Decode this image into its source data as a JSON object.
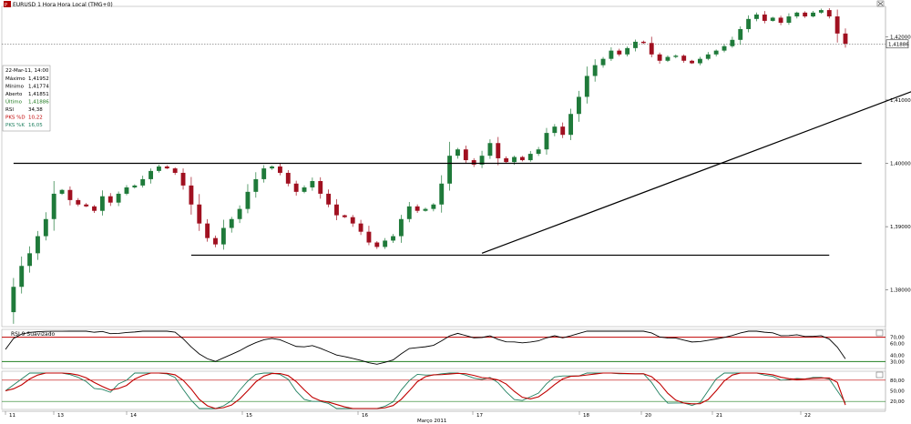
{
  "title": "EURUSD 1 Hora Hora Local (TMG+0)",
  "info_box": {
    "date": "22-Mar-11, 14:00",
    "rows": [
      {
        "label": "Máximo",
        "value": "1,41952",
        "color": "#000000"
      },
      {
        "label": "Mínimo",
        "value": "1,41774",
        "color": "#000000"
      },
      {
        "label": "Aberto",
        "value": "1,41851",
        "color": "#000000"
      },
      {
        "label": "Último",
        "value": "1,41886",
        "color": "#1f7a1f"
      },
      {
        "label": "RSI",
        "value": "34,38",
        "color": "#000000"
      },
      {
        "label": "PKS %D",
        "value": "10,22",
        "color": "#c00000"
      },
      {
        "label": "PKS %K",
        "value": "16,05",
        "color": "#208060"
      }
    ]
  },
  "last_price_label": "1,41886",
  "rsi_title": "RSI 9 Suavizado",
  "x_labels": [
    "11",
    "13",
    "14",
    "15",
    "16",
    "17",
    "18",
    "20",
    "21",
    "22"
  ],
  "month_label": "Março 2011",
  "colors": {
    "up": "#1f7a3a",
    "down": "#a01020",
    "rsi_line": "#000000",
    "stoch_k": "#208060",
    "stoch_d": "#c00000",
    "level_high": "#c00000",
    "level_low": "#208020"
  },
  "chart_data": [
    {
      "type": "candlestick",
      "title": "EURUSD 1 Hora Hora Local (TMG+0)",
      "y_ticks": [
        "1,42000",
        "1,41000",
        "1,40000",
        "1,39000",
        "1,38000"
      ],
      "ylim": [
        1.3745,
        1.4245
      ],
      "last_price": 1.41886,
      "trend_lines": [
        {
          "name": "resistance",
          "from": [
            1,
            1.4
          ],
          "to": [
            106,
            1.4
          ]
        },
        {
          "name": "support",
          "from": [
            23,
            1.3855
          ],
          "to": [
            102,
            1.3855
          ]
        },
        {
          "name": "uptrend",
          "from": [
            59,
            1.3858
          ],
          "to": [
            134,
            1.4218
          ]
        }
      ],
      "closes": [
        1.3765,
        1.3805,
        1.3838,
        1.3858,
        1.3885,
        1.3912,
        1.3952,
        1.3958,
        1.3942,
        1.3935,
        1.3932,
        1.3925,
        1.3948,
        1.3938,
        1.3952,
        1.3962,
        1.3965,
        1.3975,
        1.3988,
        1.3995,
        1.3992,
        1.3985,
        1.3965,
        1.3935,
        1.3905,
        1.3882,
        1.3872,
        1.3898,
        1.3912,
        1.3928,
        1.3955,
        1.3975,
        1.3992,
        1.3995,
        1.3985,
        1.3968,
        1.3955,
        1.3962,
        1.3972,
        1.3952,
        1.3935,
        1.3918,
        1.3915,
        1.3905,
        1.3892,
        1.3875,
        1.3868,
        1.3878,
        1.3885,
        1.3912,
        1.3932,
        1.3925,
        1.3928,
        1.3935,
        1.3968,
        1.4012,
        1.4022,
        1.4005,
        1.3998,
        1.4012,
        1.4032,
        1.4008,
        1.4002,
        1.401,
        1.4005,
        1.4015,
        1.4022,
        1.4048,
        1.4058,
        1.4045,
        1.4078,
        1.4105,
        1.4138,
        1.4155,
        1.4165,
        1.4178,
        1.4172,
        1.4182,
        1.4192,
        1.419,
        1.4172,
        1.4162,
        1.4168,
        1.417,
        1.4162,
        1.4158,
        1.4165,
        1.4172,
        1.4178,
        1.4185,
        1.4195,
        1.4212,
        1.4228,
        1.4235,
        1.4225,
        1.423,
        1.4222,
        1.4232,
        1.4238,
        1.4232,
        1.4238,
        1.4242,
        1.4232,
        1.4205,
        1.4189
      ],
      "rsi": {
        "levels": [
          70,
          30
        ],
        "ticks": [
          "70,00",
          "60,00",
          "40,00",
          "30,00"
        ],
        "ylim": [
          20,
          80
        ],
        "last": 34.38
      },
      "stochastic": {
        "levels": [
          80,
          20
        ],
        "ticks": [
          "80,00",
          "50,00",
          "20,00"
        ],
        "ylim": [
          0,
          100
        ],
        "last_k": 16.05,
        "last_d": 10.22
      }
    }
  ]
}
